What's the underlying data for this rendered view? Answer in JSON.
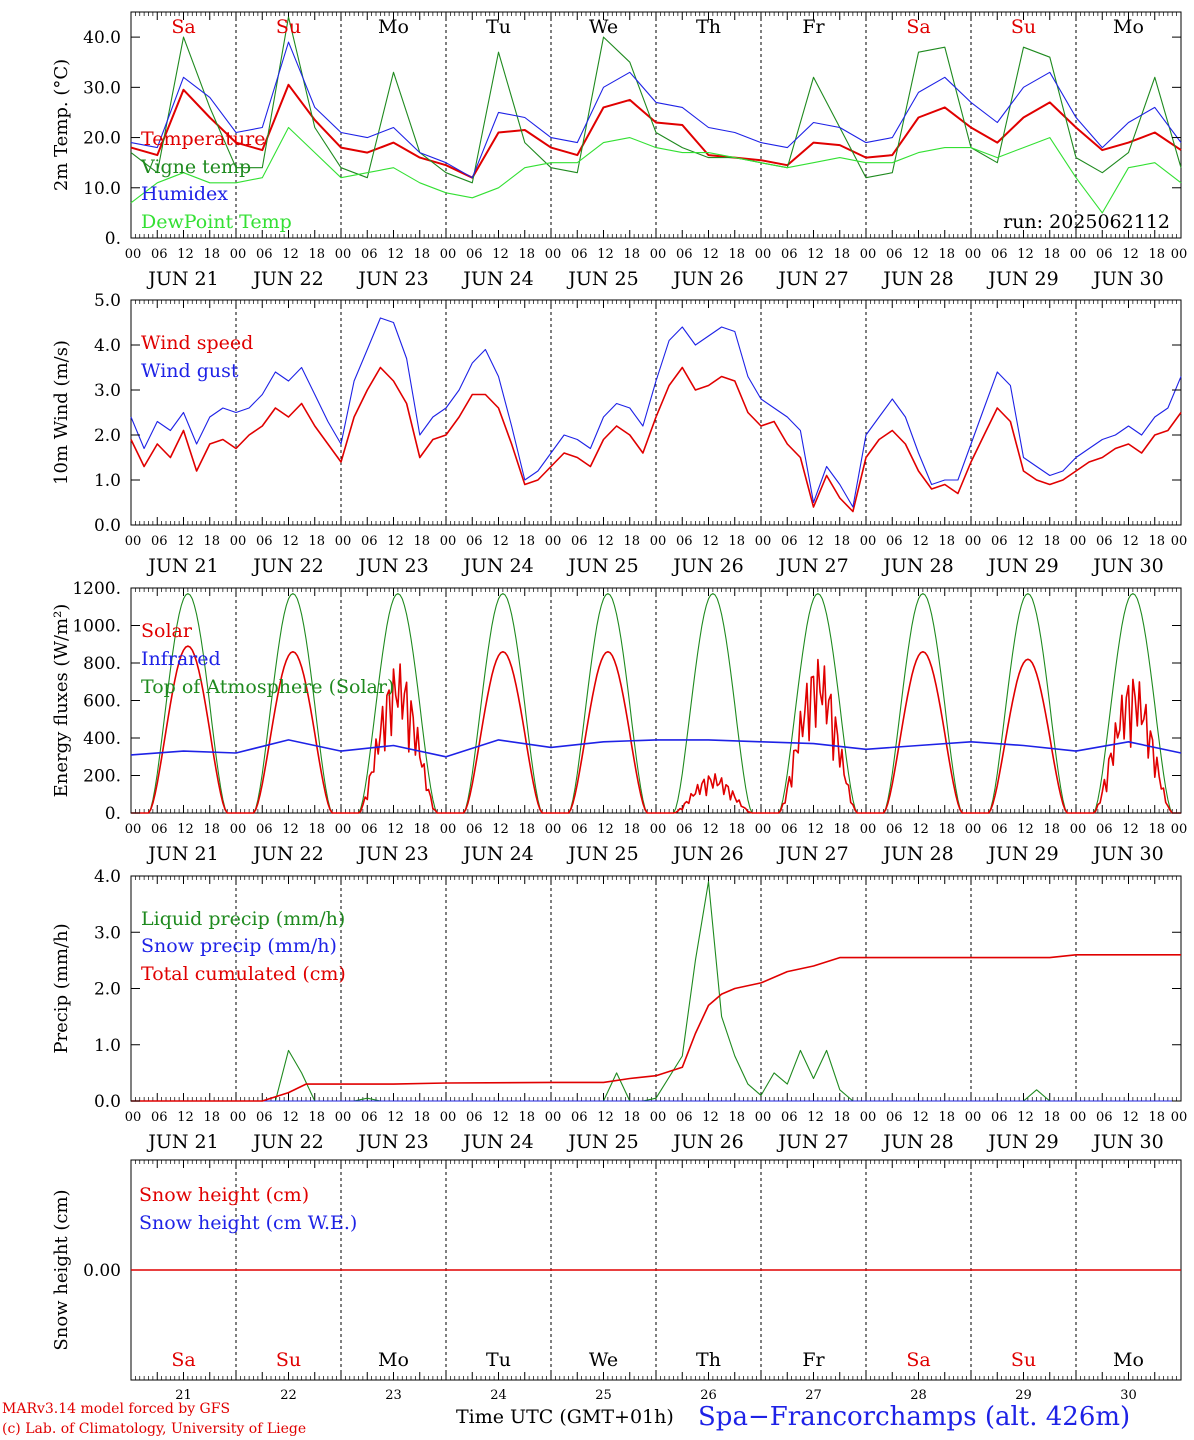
{
  "colors": {
    "red": "#e00000",
    "green": "#1f8a1f",
    "blue": "#1e22e6",
    "lightgreen": "#33e033",
    "black": "#000000"
  },
  "days_of_week": [
    "Sa",
    "Su",
    "Mo",
    "Tu",
    "We",
    "Th",
    "Fr",
    "Sa",
    "Su",
    "Mo"
  ],
  "weekend_flags": [
    true,
    true,
    false,
    false,
    false,
    false,
    false,
    true,
    true,
    false
  ],
  "date_labels": [
    "JUN 21",
    "JUN 22",
    "JUN 23",
    "JUN 24",
    "JUN 25",
    "JUN 26",
    "JUN 27",
    "JUN 28",
    "JUN 29",
    "JUN 30"
  ],
  "day_numbers": [
    "21",
    "22",
    "23",
    "24",
    "25",
    "26",
    "27",
    "28",
    "29",
    "30"
  ],
  "hour_labels": [
    "00",
    "06",
    "12",
    "18"
  ],
  "run_label": "run: 2025062112",
  "footer": {
    "model": "MARv3.14 model forced by GFS",
    "copyright": "(c) Lab. of Climatology, University of Liege",
    "time_label": "Time UTC (GMT+01h)",
    "station": "Spa−Francorchamps (alt. 426m)"
  },
  "chart_data": [
    {
      "type": "line",
      "ylabel": "2m Temp. (°C)",
      "ylim": [
        0,
        45
      ],
      "yticks": [
        "0.",
        "10.0",
        "20.0",
        "30.0",
        "40.0"
      ],
      "x_unit": "hours since 2025-06-21 00 UTC",
      "series": [
        {
          "name": "Temperature",
          "color": "red",
          "x": [
            0,
            6,
            12,
            18,
            24,
            30,
            36,
            42,
            48,
            54,
            60,
            66,
            72,
            78,
            84,
            90,
            96,
            102,
            108,
            114,
            120,
            126,
            132,
            138,
            144,
            150,
            156,
            162,
            168,
            174,
            180,
            186,
            192,
            198,
            204,
            210,
            216,
            222,
            228,
            234,
            240
          ],
          "y": [
            18,
            16.5,
            29.5,
            24,
            19,
            17.5,
            30.5,
            23.5,
            18,
            17,
            19,
            16,
            14.5,
            12,
            21,
            21.5,
            18,
            16.5,
            26,
            27.5,
            23,
            22.5,
            16.5,
            16,
            15.5,
            14.5,
            19,
            18.5,
            16,
            16.5,
            24,
            26,
            22,
            19,
            24,
            27,
            22,
            17.5,
            19,
            21,
            17.5
          ]
        },
        {
          "name": "Vigne temp",
          "color": "green",
          "x": [
            0,
            6,
            12,
            18,
            24,
            30,
            36,
            42,
            48,
            54,
            60,
            66,
            72,
            78,
            84,
            90,
            96,
            102,
            108,
            114,
            120,
            126,
            132,
            138,
            144,
            150,
            156,
            162,
            168,
            174,
            180,
            186,
            192,
            198,
            204,
            210,
            216,
            222,
            228,
            234,
            240
          ],
          "y": [
            17,
            13,
            40,
            26,
            14,
            14,
            44,
            22,
            14,
            12,
            33,
            17,
            13,
            11,
            37,
            19,
            14,
            13,
            40,
            35,
            21,
            18,
            16,
            16,
            15,
            14,
            32,
            22,
            12,
            13,
            37,
            38,
            18,
            15,
            38,
            36,
            16,
            13,
            17,
            32,
            14
          ]
        },
        {
          "name": "Humidex",
          "color": "blue",
          "x": [
            0,
            6,
            12,
            18,
            24,
            30,
            36,
            42,
            48,
            54,
            60,
            66,
            72,
            78,
            84,
            90,
            96,
            102,
            108,
            114,
            120,
            126,
            132,
            138,
            144,
            150,
            156,
            162,
            168,
            174,
            180,
            186,
            192,
            198,
            204,
            210,
            216,
            222,
            228,
            234,
            240
          ],
          "y": [
            19,
            18,
            32,
            28,
            21,
            22,
            39,
            26,
            21,
            20,
            22,
            17,
            15,
            12,
            25,
            24,
            20,
            19,
            30,
            33,
            27,
            26,
            22,
            21,
            19,
            18,
            23,
            22,
            19,
            20,
            29,
            32,
            27,
            23,
            30,
            33,
            24,
            18,
            23,
            26,
            19
          ]
        },
        {
          "name": "DewPoint Temp",
          "color": "lightgreen",
          "x": [
            0,
            6,
            12,
            18,
            24,
            30,
            36,
            42,
            48,
            54,
            60,
            66,
            72,
            78,
            84,
            90,
            96,
            102,
            108,
            114,
            120,
            126,
            132,
            138,
            144,
            150,
            156,
            162,
            168,
            174,
            180,
            186,
            192,
            198,
            204,
            210,
            216,
            222,
            228,
            234,
            240
          ],
          "y": [
            7,
            11,
            13,
            11,
            11,
            12,
            22,
            17,
            12,
            13,
            14,
            11,
            9,
            8,
            10,
            14,
            15,
            15,
            19,
            20,
            18,
            17,
            17,
            16,
            15,
            14,
            15,
            16,
            15,
            15,
            17,
            18,
            18,
            16,
            18,
            20,
            12,
            5,
            14,
            15,
            11
          ]
        }
      ]
    },
    {
      "type": "line",
      "ylabel": "10m Wind (m/s)",
      "ylim": [
        0,
        5
      ],
      "yticks": [
        "0.0",
        "1.0",
        "2.0",
        "3.0",
        "4.0",
        "5.0"
      ],
      "x_unit": "hours since 2025-06-21 00 UTC",
      "series": [
        {
          "name": "Wind speed",
          "color": "red",
          "x": [
            0,
            3,
            6,
            9,
            12,
            15,
            18,
            21,
            24,
            27,
            30,
            33,
            36,
            39,
            42,
            45,
            48,
            51,
            54,
            57,
            60,
            63,
            66,
            69,
            72,
            75,
            78,
            81,
            84,
            87,
            90,
            93,
            96,
            99,
            102,
            105,
            108,
            111,
            114,
            117,
            120,
            123,
            126,
            129,
            132,
            135,
            138,
            141,
            144,
            147,
            150,
            153,
            156,
            159,
            162,
            165,
            168,
            171,
            174,
            177,
            180,
            183,
            186,
            189,
            192,
            195,
            198,
            201,
            204,
            207,
            210,
            213,
            216,
            219,
            222,
            225,
            228,
            231,
            234,
            237,
            240
          ],
          "y": [
            1.9,
            1.3,
            1.8,
            1.5,
            2.1,
            1.2,
            1.8,
            1.9,
            1.7,
            2.0,
            2.2,
            2.6,
            2.4,
            2.7,
            2.2,
            1.8,
            1.4,
            2.4,
            3.0,
            3.5,
            3.2,
            2.7,
            1.5,
            1.9,
            2.0,
            2.4,
            2.9,
            2.9,
            2.6,
            1.8,
            0.9,
            1.0,
            1.3,
            1.6,
            1.5,
            1.3,
            1.9,
            2.2,
            2.0,
            1.6,
            2.4,
            3.1,
            3.5,
            3.0,
            3.1,
            3.3,
            3.2,
            2.5,
            2.2,
            2.3,
            1.8,
            1.5,
            0.4,
            1.1,
            0.6,
            0.3,
            1.5,
            1.9,
            2.1,
            1.8,
            1.2,
            0.8,
            0.9,
            0.7,
            1.4,
            2.0,
            2.6,
            2.3,
            1.2,
            1.0,
            0.9,
            1.0,
            1.2,
            1.4,
            1.5,
            1.7,
            1.8,
            1.6,
            2.0,
            2.1,
            2.5
          ]
        },
        {
          "name": "Wind gust",
          "color": "blue",
          "x": [
            0,
            3,
            6,
            9,
            12,
            15,
            18,
            21,
            24,
            27,
            30,
            33,
            36,
            39,
            42,
            45,
            48,
            51,
            54,
            57,
            60,
            63,
            66,
            69,
            72,
            75,
            78,
            81,
            84,
            87,
            90,
            93,
            96,
            99,
            102,
            105,
            108,
            111,
            114,
            117,
            120,
            123,
            126,
            129,
            132,
            135,
            138,
            141,
            144,
            147,
            150,
            153,
            156,
            159,
            162,
            165,
            168,
            171,
            174,
            177,
            180,
            183,
            186,
            189,
            192,
            195,
            198,
            201,
            204,
            207,
            210,
            213,
            216,
            219,
            222,
            225,
            228,
            231,
            234,
            237,
            240
          ],
          "y": [
            2.4,
            1.7,
            2.3,
            2.1,
            2.5,
            1.8,
            2.4,
            2.6,
            2.5,
            2.6,
            2.9,
            3.4,
            3.2,
            3.5,
            2.9,
            2.3,
            1.8,
            3.2,
            3.9,
            4.6,
            4.5,
            3.7,
            2.0,
            2.4,
            2.6,
            3.0,
            3.6,
            3.9,
            3.3,
            2.2,
            1.0,
            1.2,
            1.6,
            2.0,
            1.9,
            1.7,
            2.4,
            2.7,
            2.6,
            2.2,
            3.2,
            4.1,
            4.4,
            4.0,
            4.2,
            4.4,
            4.3,
            3.3,
            2.8,
            2.6,
            2.4,
            2.1,
            0.5,
            1.3,
            0.9,
            0.4,
            2.0,
            2.4,
            2.8,
            2.4,
            1.6,
            0.9,
            1.0,
            1.0,
            1.8,
            2.6,
            3.4,
            3.1,
            1.5,
            1.3,
            1.1,
            1.2,
            1.5,
            1.7,
            1.9,
            2.0,
            2.2,
            2.0,
            2.4,
            2.6,
            3.3
          ]
        }
      ]
    },
    {
      "type": "line",
      "ylabel": "Energy fluxes (W/m²)",
      "ylim": [
        0,
        1200
      ],
      "yticks": [
        "0.",
        "200.",
        "400.",
        "600.",
        "800.",
        "1000.",
        "1200."
      ],
      "x_unit": "hours since 2025-06-21 00 UTC",
      "daily_peak_hour": 13,
      "daylight_hours": [
        4,
        22
      ],
      "series": [
        {
          "name": "Solar",
          "color": "red",
          "daily_peaks": [
            890,
            860,
            800,
            860,
            860,
            210,
            830,
            860,
            820,
            740
          ],
          "irregular_days": [
            false,
            false,
            true,
            false,
            false,
            true,
            true,
            false,
            false,
            true
          ]
        },
        {
          "name": "Infrared",
          "color": "blue",
          "x": [
            0,
            12,
            24,
            36,
            48,
            60,
            72,
            84,
            96,
            108,
            120,
            132,
            144,
            156,
            168,
            180,
            192,
            204,
            216,
            228,
            240
          ],
          "y": [
            310,
            330,
            320,
            390,
            330,
            360,
            300,
            390,
            350,
            380,
            390,
            390,
            380,
            370,
            340,
            360,
            380,
            360,
            330,
            380,
            320
          ]
        },
        {
          "name": "Top of Atmosphere (Solar)",
          "color": "green",
          "daily_peaks": [
            1170,
            1170,
            1170,
            1170,
            1170,
            1170,
            1170,
            1170,
            1170,
            1170
          ]
        }
      ]
    },
    {
      "type": "line",
      "ylabel": "Precip (mm/h)",
      "ylim": [
        0,
        4
      ],
      "yticks": [
        "0.0",
        "1.0",
        "2.0",
        "3.0",
        "4.0"
      ],
      "x_unit": "hours since 2025-06-21 00 UTC",
      "series": [
        {
          "name": "Liquid precip (mm/h)",
          "color": "green",
          "x": [
            0,
            30,
            33,
            36,
            39,
            42,
            45,
            48,
            51,
            54,
            57,
            60,
            108,
            111,
            114,
            117,
            120,
            126,
            129,
            132,
            135,
            138,
            141,
            144,
            147,
            150,
            153,
            156,
            159,
            162,
            165,
            168,
            204,
            207,
            210,
            213,
            240
          ],
          "y": [
            0,
            0,
            0,
            0.9,
            0.5,
            0,
            0,
            0,
            0,
            0.05,
            0,
            0,
            0,
            0.5,
            0,
            0,
            0.05,
            0.8,
            2.5,
            3.9,
            1.5,
            0.8,
            0.3,
            0.1,
            0.5,
            0.3,
            0.9,
            0.4,
            0.9,
            0.2,
            0,
            0,
            0,
            0.2,
            0,
            0,
            0
          ]
        },
        {
          "name": "Snow precip (mm/h)",
          "color": "blue",
          "x": [
            0,
            240
          ],
          "y": [
            0,
            0
          ]
        },
        {
          "name": "Total cumulated (cm)",
          "color": "red",
          "x": [
            0,
            30,
            36,
            40,
            48,
            60,
            72,
            96,
            108,
            114,
            120,
            126,
            129,
            132,
            135,
            138,
            144,
            150,
            156,
            162,
            168,
            192,
            210,
            216,
            240
          ],
          "y": [
            0,
            0,
            0.15,
            0.3,
            0.3,
            0.3,
            0.32,
            0.33,
            0.33,
            0.4,
            0.45,
            0.6,
            1.2,
            1.7,
            1.9,
            2.0,
            2.1,
            2.3,
            2.4,
            2.55,
            2.55,
            2.55,
            2.55,
            2.6,
            2.6
          ]
        }
      ]
    },
    {
      "type": "line",
      "ylabel": "Snow height (cm)",
      "ylim": [
        -1,
        1
      ],
      "yticks": [
        "0.00"
      ],
      "x_unit": "hours since 2025-06-21 00 UTC",
      "series": [
        {
          "name": "Snow height (cm)",
          "color": "red",
          "x": [
            0,
            240
          ],
          "y": [
            0,
            0
          ]
        },
        {
          "name": "Snow height (cm W.E.)",
          "color": "blue",
          "x": [],
          "y": []
        }
      ]
    }
  ]
}
